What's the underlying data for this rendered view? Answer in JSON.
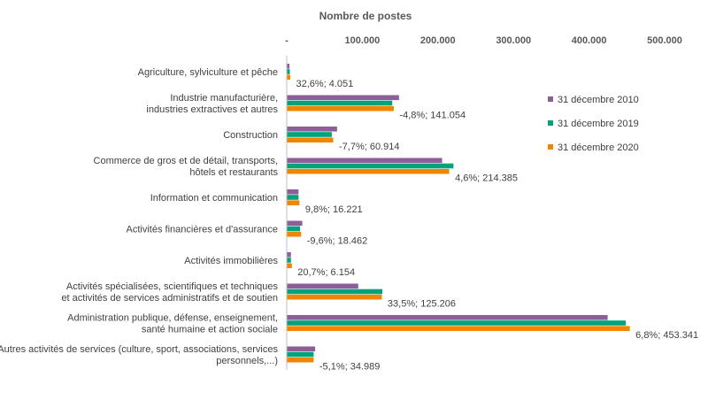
{
  "chart_data": {
    "type": "bar",
    "orientation": "horizontal",
    "xlabel": "Nombre de postes",
    "xlim": [
      0,
      500000
    ],
    "x_tick_values": [
      0,
      100000,
      200000,
      300000,
      400000,
      500000
    ],
    "x_tick_labels": [
      "-",
      "100.000",
      "200.000",
      "300.000",
      "400.000",
      "500.000"
    ],
    "grid": false,
    "legend_position": "right",
    "categories": [
      [
        "Agriculture, sylviculture et pêche"
      ],
      [
        "Industrie manufacturière,",
        "industries extractives et autres"
      ],
      [
        "Construction"
      ],
      [
        "Commerce de gros et de détail, transports,",
        "hôtels et restaurants"
      ],
      [
        "Information et communication"
      ],
      [
        "Activités financières et d'assurance"
      ],
      [
        "Activités immobilières"
      ],
      [
        "Activités spécialisées, scientifiques et techniques",
        "et activités de services administratifs et de soutien"
      ],
      [
        "Administration publique, défense, enseignement,",
        "santé humaine et action sociale"
      ],
      [
        "Autres activités de services (culture, sport, associations, services",
        "personnels,...)"
      ]
    ],
    "series": [
      {
        "name": "31 décembre 2010",
        "color": "#8E5E99",
        "values": [
          3000,
          148000,
          66000,
          205000,
          15000,
          20000,
          5000,
          94000,
          424000,
          37000
        ]
      },
      {
        "name": "31 décembre 2019",
        "color": "#00A37A",
        "values": [
          3500,
          139000,
          59000,
          220000,
          15000,
          17000,
          5000,
          126000,
          448000,
          35000
        ]
      },
      {
        "name": "31 décembre 2020",
        "color": "#F28500",
        "values": [
          4051,
          141054,
          60914,
          214385,
          16221,
          18462,
          6154,
          125206,
          453341,
          34989
        ]
      }
    ],
    "data_labels": [
      "32,6%; 4.051",
      "-4,8%; 141.054",
      "-7,7%; 60.914",
      "4,6%; 214.385",
      "9,8%; 16.221",
      "-9,6%; 18.462",
      "20,7%; 6.154",
      "33,5%; 125.206",
      "6,8%; 453.341",
      "-5,1%; 34.989"
    ]
  }
}
